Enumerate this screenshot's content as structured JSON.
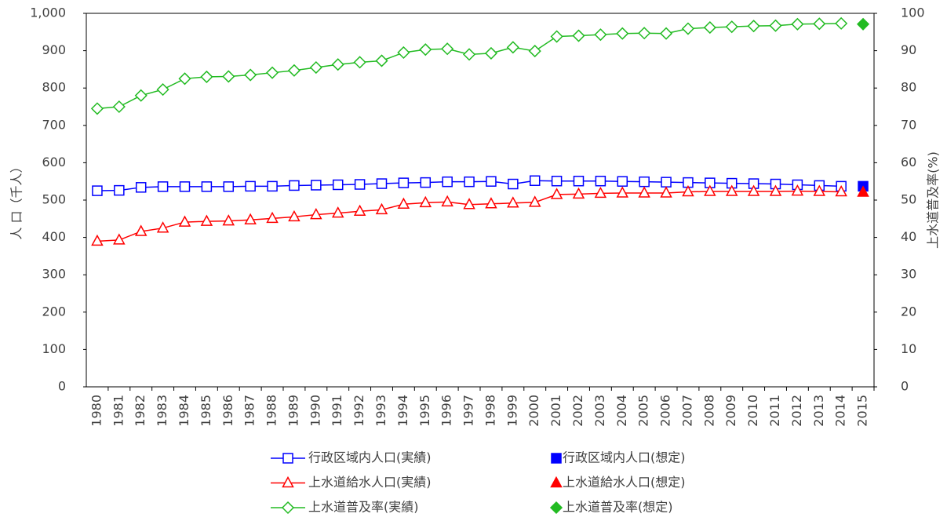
{
  "chart_data": {
    "type": "line",
    "categories": [
      "1980",
      "1981",
      "1982",
      "1983",
      "1984",
      "1985",
      "1986",
      "1987",
      "1988",
      "1989",
      "1990",
      "1991",
      "1992",
      "1993",
      "1994",
      "1995",
      "1996",
      "1997",
      "1998",
      "1999",
      "2000",
      "2001",
      "2002",
      "2003",
      "2004",
      "2005",
      "2006",
      "2007",
      "2008",
      "2009",
      "2010",
      "2011",
      "2012",
      "2013",
      "2014",
      "2015"
    ],
    "ylabel": "人 口（千人）",
    "y2label": "上水道普及率(%)",
    "ylim": [
      0,
      1000
    ],
    "yticks": [
      0,
      100,
      200,
      300,
      400,
      500,
      600,
      700,
      800,
      900,
      {
        "value": 1000,
        "label": "1,000"
      }
    ],
    "y2lim": [
      0,
      100
    ],
    "y2ticks": [
      0,
      10,
      20,
      30,
      40,
      50,
      60,
      70,
      80,
      90,
      100
    ],
    "grid": false,
    "series": [
      {
        "name": "行政区域内人口(実績)",
        "color": "#0000ff",
        "marker": "square",
        "filled": false,
        "values": [
          525,
          526,
          534,
          536,
          536,
          536,
          536,
          537,
          537,
          539,
          540,
          541,
          542,
          544,
          546,
          547,
          549,
          549,
          550,
          543,
          552,
          551,
          551,
          551,
          550,
          549,
          548,
          547,
          546,
          545,
          544,
          543,
          541,
          539,
          537,
          null
        ]
      },
      {
        "name": "行政区域内人口(想定)",
        "color": "#0000ff",
        "marker": "square",
        "filled": true,
        "values": [
          null,
          null,
          null,
          null,
          null,
          null,
          null,
          null,
          null,
          null,
          null,
          null,
          null,
          null,
          null,
          null,
          null,
          null,
          null,
          null,
          null,
          null,
          null,
          null,
          null,
          null,
          null,
          null,
          null,
          null,
          null,
          null,
          null,
          null,
          null,
          537
        ]
      },
      {
        "name": "上水道給水人口(実績)",
        "color": "#ff0000",
        "marker": "triangle",
        "filled": false,
        "values": [
          390,
          393,
          416,
          425,
          441,
          443,
          444,
          447,
          451,
          455,
          461,
          465,
          470,
          474,
          489,
          493,
          495,
          488,
          490,
          492,
          494,
          515,
          516,
          518,
          519,
          519,
          519,
          522,
          523,
          523,
          523,
          523,
          524,
          523,
          522,
          null
        ]
      },
      {
        "name": "上水道給水人口(想定)",
        "color": "#ff0000",
        "marker": "triangle",
        "filled": true,
        "values": [
          null,
          null,
          null,
          null,
          null,
          null,
          null,
          null,
          null,
          null,
          null,
          null,
          null,
          null,
          null,
          null,
          null,
          null,
          null,
          null,
          null,
          null,
          null,
          null,
          null,
          null,
          null,
          null,
          null,
          null,
          null,
          null,
          null,
          null,
          null,
          521
        ]
      },
      {
        "name": "上水道普及率(実績)",
        "color": "#22bb22",
        "marker": "diamond",
        "filled": false,
        "axis": "y2",
        "values": [
          74.5,
          75,
          78,
          79.6,
          82.5,
          83,
          83.1,
          83.5,
          84.1,
          84.7,
          85.5,
          86.3,
          86.9,
          87.3,
          89.5,
          90.3,
          90.5,
          89,
          89.3,
          90.9,
          89.9,
          93.8,
          94,
          94.3,
          94.6,
          94.7,
          94.6,
          95.9,
          96.2,
          96.4,
          96.6,
          96.7,
          97.1,
          97.2,
          97.3,
          null
        ]
      },
      {
        "name": "上水道普及率(想定)",
        "color": "#22bb22",
        "marker": "diamond",
        "filled": true,
        "axis": "y2",
        "values": [
          null,
          null,
          null,
          null,
          null,
          null,
          null,
          null,
          null,
          null,
          null,
          null,
          null,
          null,
          null,
          null,
          null,
          null,
          null,
          null,
          null,
          null,
          null,
          null,
          null,
          null,
          null,
          null,
          null,
          null,
          null,
          null,
          null,
          null,
          null,
          97.1
        ]
      }
    ]
  }
}
